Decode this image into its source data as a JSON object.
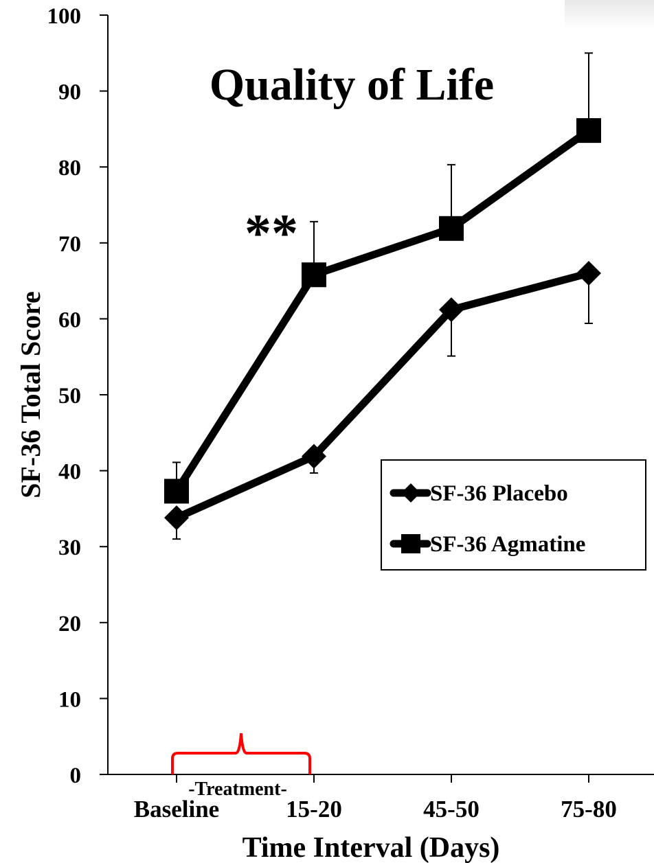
{
  "chart_data": {
    "type": "line",
    "title": "Quality of Life",
    "xlabel": "Time Interval (Days)",
    "ylabel": "SF-36 Total Score",
    "categories": [
      "Baseline",
      "15-20",
      "45-50",
      "75-80"
    ],
    "ylim": [
      0,
      100
    ],
    "yticks": [
      0,
      10,
      20,
      30,
      40,
      50,
      60,
      70,
      80,
      90,
      100
    ],
    "grid": false,
    "legend_position": "right",
    "series": [
      {
        "name": "SF-36 Placebo",
        "marker": "diamond",
        "values": [
          33.8,
          41.9,
          61.2,
          66.0
        ],
        "error_bars": [
          2.8,
          2.2,
          6.1,
          6.6
        ],
        "error_direction": [
          "down",
          "down",
          "down",
          "down"
        ]
      },
      {
        "name": "SF-36 Agmatine",
        "marker": "square",
        "values": [
          37.3,
          65.8,
          71.9,
          84.8
        ],
        "error_bars": [
          3.8,
          7.0,
          8.4,
          10.2
        ],
        "error_direction": [
          "up",
          "up",
          "up",
          "up"
        ]
      }
    ],
    "annotations": [
      {
        "text": "**",
        "category": "15-20",
        "y": 73
      },
      {
        "text": "-Treatment-",
        "from_category": "Baseline",
        "to_category": "15-20",
        "color": "#ff0000"
      }
    ]
  }
}
